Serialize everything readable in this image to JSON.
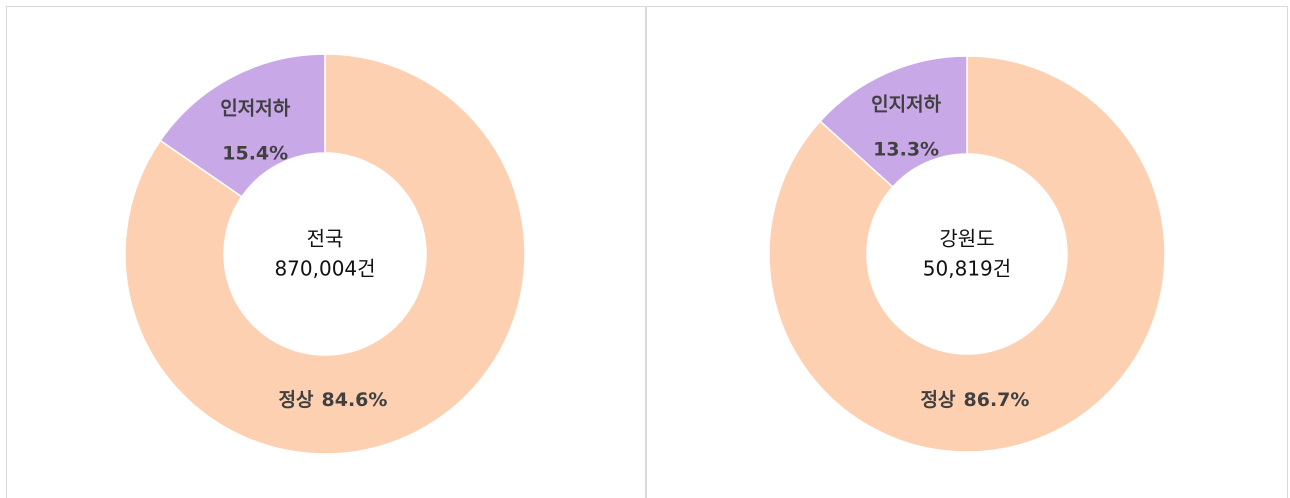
{
  "chart_data": [
    {
      "type": "pie",
      "donut": true,
      "categories": [
        "정상",
        "인저저하"
      ],
      "values": [
        84.6,
        15.4
      ],
      "value_labels": [
        "84.6%",
        "15.4%"
      ],
      "colors": [
        "#fdd0b1",
        "#c9a8e8"
      ],
      "center_title": "전국",
      "center_subtitle": "870,004건"
    },
    {
      "type": "pie",
      "donut": true,
      "categories": [
        "정상",
        "인지저하"
      ],
      "values": [
        86.7,
        13.3
      ],
      "value_labels": [
        "86.7%",
        "13.3%"
      ],
      "colors": [
        "#fdd0b1",
        "#c9a8e8"
      ],
      "center_title": "강원도",
      "center_subtitle": "50,819건"
    }
  ]
}
